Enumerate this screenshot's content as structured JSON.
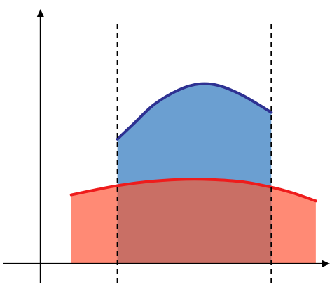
{
  "chart_data": {
    "type": "area",
    "title": "",
    "xlabel": "",
    "ylabel": "",
    "grid": false,
    "legend": "none",
    "axes": {
      "arrows": true,
      "tick_labels": false
    },
    "xlim": [
      -0.5,
      3.6
    ],
    "ylim": [
      -0.45,
      3.45
    ],
    "vertical_lines": [
      {
        "x": 0.95,
        "style": "dashed",
        "color": "#000000"
      },
      {
        "x": 2.85,
        "style": "dashed",
        "color": "#000000"
      }
    ],
    "series": [
      {
        "fill": "#ff8a75",
        "stroke": "#ee1c1c",
        "points": [
          [
            0.38,
            0.9
          ],
          [
            0.7,
            0.97
          ],
          [
            0.95,
            1.02
          ],
          [
            1.3,
            1.07
          ],
          [
            1.7,
            1.1
          ],
          [
            2.1,
            1.1
          ],
          [
            2.5,
            1.07
          ],
          [
            2.85,
            1.0
          ],
          [
            3.1,
            0.93
          ],
          [
            3.4,
            0.82
          ]
        ]
      },
      {
        "fill": "#6b9fd1",
        "stroke": "#2e3192",
        "points": [
          [
            0.95,
            1.63
          ],
          [
            1.15,
            1.83
          ],
          [
            1.4,
            2.08
          ],
          [
            1.7,
            2.27
          ],
          [
            1.95,
            2.35
          ],
          [
            2.2,
            2.33
          ],
          [
            2.5,
            2.2
          ],
          [
            2.85,
            1.98
          ]
        ]
      }
    ],
    "overlap_fill": "#c96f65"
  }
}
